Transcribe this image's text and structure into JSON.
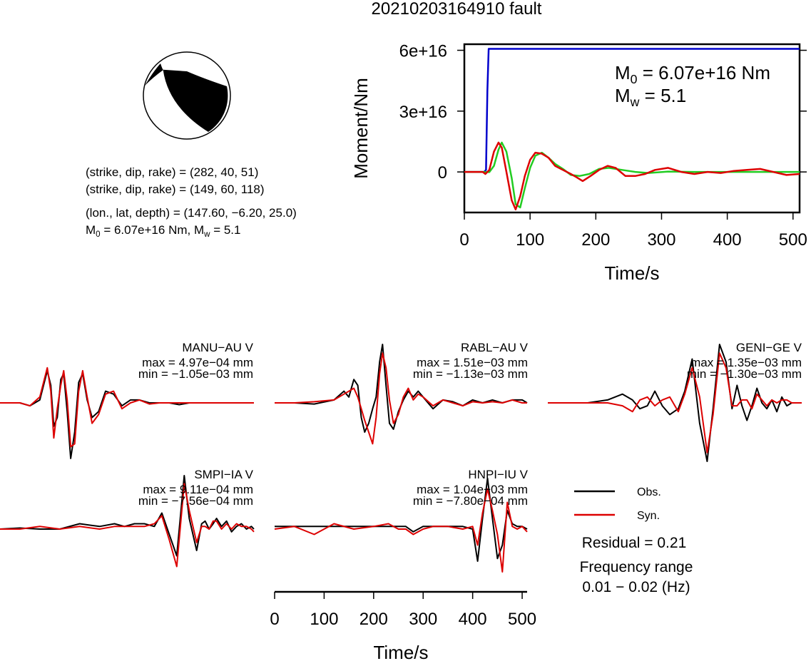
{
  "figure": {
    "title": "20210203164910 fault"
  },
  "focal_mechanism": {
    "planes": [
      {
        "label": "(strike, dip, rake) = (282, 40, 51)",
        "strike": 282,
        "dip": 40,
        "rake": 51
      },
      {
        "label": "(strike, dip, rake) = (149, 60, 118)",
        "strike": 149,
        "dip": 60,
        "rake": 118
      }
    ],
    "location_label": "(lon., lat, depth) = (147.60, −6.20, 25.0)",
    "moment_label_m": "M",
    "moment_label_sub": "0",
    "moment_label_mid": " = 6.07e+16 Nm, M",
    "moment_label_sub2": "w",
    "moment_label_end": " = 5.1"
  },
  "moment_box": {
    "m0_letter": "M",
    "m0_sub": "0",
    "m0_value": " = 6.07e+16 Nm",
    "mw_letter": "M",
    "mw_sub": "w",
    "mw_value": " = 5.1"
  },
  "waveforms": {
    "stations": [
      {
        "name": "MANU−AU V",
        "max": "max = 4.97e−04 mm",
        "min": "min = −1.05e−03 mm"
      },
      {
        "name": "RABL−AU V",
        "max": "max = 1.51e−03 mm",
        "min": "min = −1.13e−03 mm"
      },
      {
        "name": "GENI−GE V",
        "max": "max = 1.35e−03 mm",
        "min": "min = −1.30e−03 mm"
      },
      {
        "name": "SMPI−IA V",
        "max": "max = 9.11e−04 mm",
        "min": "min = −7.56e−04 mm"
      },
      {
        "name": "HNPI−IU V",
        "max": "max = 1.04e−03 mm",
        "min": "min = −7.80e−04 mm"
      }
    ],
    "legend": {
      "obs": "Obs.",
      "syn": "Syn."
    },
    "residual": "Residual = 0.21",
    "freq_label": "Frequency range",
    "freq_value": "0.01 − 0.02 (Hz)"
  },
  "chart_data": [
    {
      "type": "line",
      "title": "20210203164910 fault",
      "xlabel": "Time/s",
      "ylabel": "Moment/Nm",
      "xlim": [
        0,
        510
      ],
      "ylim": [
        -2e+16,
        6.3e+16
      ],
      "xticks": [
        0,
        100,
        200,
        300,
        400,
        500
      ],
      "yticks": [
        0,
        3e+16,
        6e+16
      ],
      "ytick_labels": [
        "0",
        "3e+16",
        "6e+16"
      ],
      "colors": {
        "cumulative": "#0000cc",
        "obs": "#22cc22",
        "syn": "#dd0000"
      },
      "series": [
        {
          "x": [
            0,
            30,
            33,
            35,
            37,
            510
          ],
          "y": [
            0,
            0,
            1000000000000000.0,
            4e+16,
            6.07e+16,
            6.07e+16
          ]
        },
        {
          "x": [
            0,
            30,
            38,
            45,
            52,
            57,
            64,
            72,
            78,
            85,
            92,
            100,
            108,
            118,
            128,
            138,
            150,
            162,
            175,
            190,
            205,
            220,
            240,
            260,
            280,
            310,
            350,
            400,
            450,
            510
          ],
          "y": [
            0,
            0,
            -100000000000000.0,
            3000000000000000.0,
            1.1e+16,
            1.45e+16,
            1e+16,
            -3000000000000000.0,
            -1.6e+16,
            -1.75e+16,
            -8000000000000000.0,
            2000000000000000.0,
            8000000000000000.0,
            9500000000000000.0,
            7000000000000000.0,
            4000000000000000.0,
            1500000000000000.0,
            -1500000000000000.0,
            -2000000000000000.0,
            -1000000000000000.0,
            1500000000000000.0,
            2000000000000000.0,
            1000000000000000.0,
            0,
            -500000000000000.0,
            200000000000000.0,
            0,
            0,
            0,
            0
          ]
        },
        {
          "x": [
            0,
            28,
            32,
            38,
            45,
            52,
            57,
            64,
            72,
            78,
            85,
            92,
            100,
            108,
            118,
            128,
            138,
            150,
            162,
            170,
            180,
            192,
            205,
            218,
            230,
            245,
            260,
            275,
            290,
            310,
            330,
            350,
            370,
            390,
            410,
            430,
            450,
            470,
            490,
            510
          ],
          "y": [
            0,
            0,
            -1000000000000000.0,
            1000000000000000.0,
            1e+16,
            1.45e+16,
            1.2e+16,
            0,
            -1.4e+16,
            -1.85e+16,
            -1.2e+16,
            -2000000000000000.0,
            6000000000000000.0,
            9500000000000000.0,
            9000000000000000.0,
            7000000000000000.0,
            3000000000000000.0,
            1000000000000000.0,
            -1000000000000000.0,
            -2500000000000000.0,
            -4500000000000000.0,
            -2000000000000000.0,
            1000000000000000.0,
            3000000000000000.0,
            2000000000000000.0,
            -2000000000000000.0,
            -2000000000000000.0,
            -1000000000000000.0,
            1000000000000000.0,
            2000000000000000.0,
            0,
            -1000000000000000.0,
            0,
            -500000000000000.0,
            500000000000000.0,
            1000000000000000.0,
            1500000000000000.0,
            0,
            -1500000000000000.0,
            -1000000000000000.0
          ]
        }
      ]
    },
    {
      "type": "line",
      "xlabel": "Time/s",
      "xlim": [
        0,
        510
      ],
      "xticks": [
        0,
        100,
        200,
        300,
        400,
        500
      ],
      "ylim": [
        -1.0,
        1.0
      ],
      "panels": [
        {
          "obs": {
            "x": [
              0,
              40,
              60,
              80,
              95,
              102,
              108,
              115,
              122,
              128,
              135,
              142,
              150,
              158,
              166,
              175,
              185,
              198,
              212,
              228,
              245,
              262,
              280,
              300,
              320,
              340,
              360,
              380,
              400,
              420,
              440,
              460,
              480,
              500,
              510
            ],
            "y": [
              0,
              0,
              -0.05,
              0.05,
              0.55,
              0.3,
              -0.4,
              -0.25,
              0.4,
              0.5,
              -0.15,
              -0.95,
              -0.5,
              0.35,
              0.5,
              0.05,
              -0.25,
              -0.15,
              0.2,
              0.15,
              -0.05,
              0.05,
              0.05,
              0,
              0,
              0,
              -0.03,
              0,
              0,
              0,
              0,
              0,
              0,
              0,
              0
            ]
          },
          "syn": {
            "x": [
              0,
              40,
              60,
              80,
              95,
              102,
              108,
              115,
              122,
              128,
              135,
              142,
              150,
              158,
              166,
              175,
              185,
              198,
              212,
              228,
              245,
              262,
              280,
              300,
              320,
              340,
              360,
              380,
              400,
              420,
              440,
              460,
              480,
              500,
              510
            ],
            "y": [
              0,
              0,
              -0.05,
              0.1,
              0.6,
              0.2,
              -0.6,
              -0.1,
              0.3,
              0.55,
              0.05,
              -0.75,
              -0.7,
              0.2,
              0.55,
              0.1,
              -0.35,
              -0.2,
              0.15,
              0.2,
              -0.1,
              0.0,
              0.05,
              -0.02,
              0,
              0,
              0,
              0,
              0,
              0,
              0,
              0,
              0,
              0,
              0
            ]
          }
        },
        {
          "obs": {
            "x": [
              0,
              40,
              80,
              120,
              140,
              150,
              160,
              168,
              175,
              182,
              190,
              198,
              205,
              212,
              218,
              225,
              232,
              240,
              250,
              260,
              270,
              280,
              290,
              300,
              320,
              340,
              360,
              380,
              400,
              420,
              440,
              460,
              480,
              500,
              510
            ],
            "y": [
              0,
              0,
              -0.02,
              0.05,
              0.2,
              0.1,
              0.4,
              0.3,
              -0.25,
              -0.5,
              -0.35,
              -0.1,
              0.1,
              0.7,
              1.0,
              0.3,
              -0.35,
              -0.45,
              -0.15,
              0.05,
              0.2,
              0.1,
              0.2,
              0.1,
              -0.1,
              0.05,
              0.02,
              -0.05,
              0.05,
              0,
              0.05,
              0,
              0.05,
              0.05,
              0
            ]
          },
          "syn": {
            "x": [
              0,
              40,
              80,
              120,
              140,
              150,
              160,
              168,
              175,
              182,
              190,
              198,
              205,
              212,
              218,
              225,
              232,
              240,
              250,
              260,
              270,
              280,
              290,
              300,
              320,
              340,
              360,
              380,
              400,
              420,
              440,
              460,
              480,
              500,
              510
            ],
            "y": [
              0,
              0,
              0.02,
              0.05,
              0.15,
              0.2,
              0.25,
              0.1,
              -0.1,
              -0.3,
              -0.5,
              -0.7,
              -0.25,
              0.5,
              0.85,
              0.6,
              0.05,
              -0.35,
              -0.2,
              0.1,
              0.25,
              0.05,
              0.15,
              0.1,
              -0.05,
              0.05,
              0,
              -0.05,
              0.02,
              0,
              0.02,
              0,
              0.05,
              0,
              0
            ]
          }
        },
        {
          "obs": {
            "x": [
              0,
              40,
              80,
              120,
              150,
              170,
              185,
              200,
              215,
              230,
              245,
              262,
              275,
              290,
              305,
              320,
              332,
              345,
              358,
              370,
              380,
              390,
              400,
              410,
              420,
              430,
              440,
              450,
              460,
              470,
              480,
              490,
              500,
              510
            ],
            "y": [
              0,
              0,
              0,
              0.05,
              0.15,
              0.05,
              -0.1,
              -0.05,
              0.2,
              -0.05,
              -0.2,
              -0.1,
              0.2,
              0.75,
              -0.35,
              -1.0,
              -0.1,
              1.0,
              0.7,
              -0.1,
              0.3,
              -0.05,
              -0.3,
              -0.05,
              0.25,
              0,
              -0.1,
              0.05,
              -0.15,
              0.1,
              -0.05,
              0,
              0,
              0
            ]
          },
          "syn": {
            "x": [
              0,
              40,
              80,
              120,
              150,
              170,
              185,
              200,
              215,
              230,
              245,
              262,
              275,
              290,
              305,
              320,
              332,
              345,
              358,
              370,
              380,
              390,
              400,
              410,
              420,
              430,
              440,
              450,
              460,
              470,
              480,
              490,
              500,
              510
            ],
            "y": [
              0,
              0,
              0,
              0,
              -0.05,
              -0.15,
              0.05,
              0.1,
              -0.05,
              0.05,
              0.1,
              -0.15,
              0.15,
              0.6,
              0.1,
              -0.85,
              -0.2,
              0.85,
              0.6,
              -0.05,
              -0.05,
              0.05,
              0.05,
              -0.1,
              0.15,
              0.05,
              -0.05,
              0.05,
              0,
              0.05,
              0.05,
              0,
              0,
              0
            ]
          }
        },
        {
          "obs": {
            "x": [
              0,
              40,
              80,
              120,
              160,
              200,
              230,
              250,
              270,
              290,
              310,
              325,
              340,
              355,
              370,
              380,
              395,
              405,
              412,
              420,
              428,
              435,
              445,
              455,
              465,
              475,
              485,
              495,
              505,
              510
            ],
            "y": [
              0,
              0.02,
              0,
              0,
              0.1,
              0.05,
              0.1,
              0.05,
              0.1,
              0.1,
              0.05,
              0.3,
              -0.1,
              -0.5,
              1.0,
              0.2,
              -0.4,
              0.1,
              0.15,
              0,
              0.1,
              0.2,
              0.05,
              0.15,
              -0.05,
              0.05,
              0.1,
              0,
              0.05,
              0
            ]
          },
          "syn": {
            "x": [
              0,
              40,
              80,
              120,
              160,
              200,
              230,
              250,
              270,
              290,
              310,
              325,
              340,
              355,
              370,
              380,
              395,
              405,
              412,
              420,
              428,
              435,
              445,
              455,
              465,
              475,
              485,
              495,
              505,
              510
            ],
            "y": [
              0,
              0,
              0.05,
              0,
              0.05,
              0,
              0.05,
              0.05,
              0.05,
              0.05,
              0.1,
              0.25,
              -0.2,
              -0.7,
              0.85,
              0.35,
              -0.25,
              0.05,
              0.05,
              0,
              0.15,
              0.15,
              0,
              0.1,
              0,
              0.1,
              0.05,
              0.05,
              0,
              -0.05
            ]
          }
        },
        {
          "obs": {
            "x": [
              0,
              40,
              80,
              120,
              160,
              200,
              230,
              250,
              265,
              280,
              300,
              320,
              350,
              380,
              400,
              410,
              420,
              430,
              440,
              450,
              460,
              470,
              480,
              490,
              500,
              510
            ],
            "y": [
              0.05,
              0.05,
              0.05,
              0.05,
              0.05,
              0.05,
              0.05,
              0.05,
              0.05,
              -0.05,
              0.05,
              0.05,
              0.05,
              0.05,
              0,
              -0.6,
              0.2,
              0.95,
              0.2,
              -0.55,
              -0.3,
              0.35,
              0.1,
              0.05,
              0.05,
              0
            ]
          },
          "syn": {
            "x": [
              0,
              40,
              80,
              120,
              160,
              200,
              230,
              250,
              265,
              280,
              300,
              320,
              350,
              380,
              400,
              410,
              420,
              430,
              440,
              450,
              460,
              470,
              480,
              490,
              500,
              510
            ],
            "y": [
              0,
              0.05,
              -0.1,
              0.1,
              0,
              0.05,
              0.1,
              0,
              0,
              -0.1,
              0,
              0.05,
              0.05,
              0,
              0.05,
              -0.3,
              0.3,
              0.75,
              0.35,
              -0.1,
              -0.8,
              0.5,
              0.05,
              0,
              0.05,
              -0.05
            ]
          }
        }
      ]
    }
  ]
}
